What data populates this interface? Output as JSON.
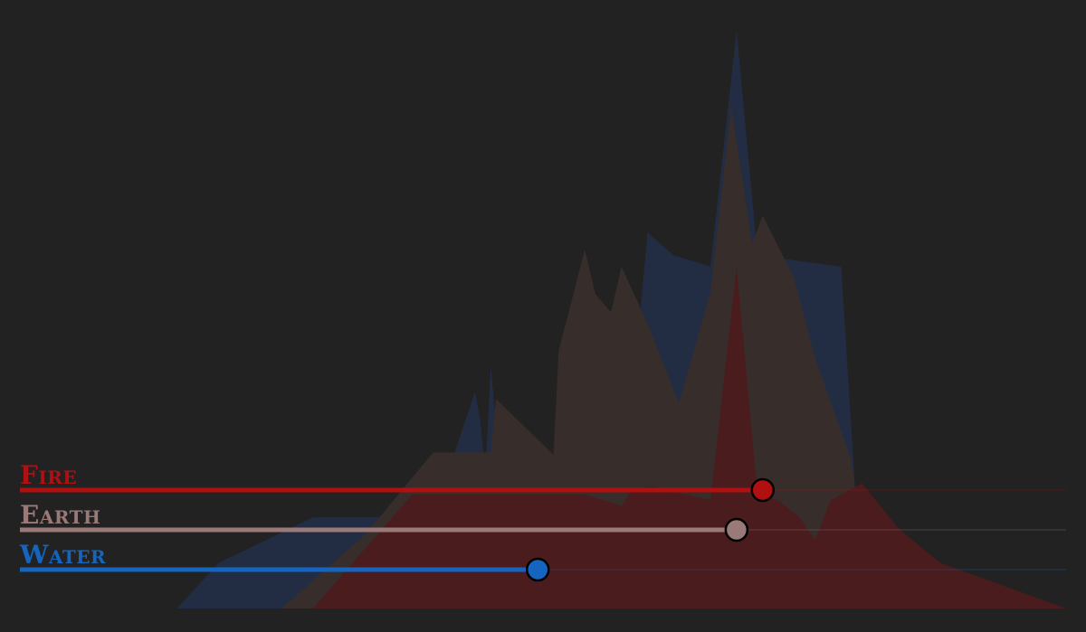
{
  "colors": {
    "background": "#222222",
    "fire": "#b01010",
    "earth": "#9a7a78",
    "water": "#1565c0",
    "fire_area": "#4a1c1d",
    "earth_area": "#372d2b",
    "water_area": "#222d44"
  },
  "sliders": [
    {
      "key": "fire",
      "label": "Fire",
      "value": 0.71
    },
    {
      "key": "earth",
      "label": "Earth",
      "value": 0.685
    },
    {
      "key": "water",
      "label": "Water",
      "value": 0.495
    }
  ],
  "chart_data": {
    "type": "area",
    "series": [
      {
        "key": "water",
        "values": [
          [
            0,
            0
          ],
          [
            0.15,
            0
          ],
          [
            0.19,
            0.4
          ],
          [
            0.28,
            0.8
          ],
          [
            0.36,
            0.8
          ],
          [
            0.39,
            0.1
          ],
          [
            0.4,
            0.95
          ],
          [
            0.435,
            1.9
          ],
          [
            0.44,
            1.65
          ],
          [
            0.445,
            1.2
          ],
          [
            0.45,
            2.12
          ],
          [
            0.46,
            1.15
          ],
          [
            0.52,
            1.4
          ],
          [
            0.58,
            1.28
          ],
          [
            0.6,
            3.3
          ],
          [
            0.625,
            3.1
          ],
          [
            0.66,
            3.0
          ],
          [
            0.685,
            5.07
          ],
          [
            0.705,
            3.1
          ],
          [
            0.785,
            3.0
          ],
          [
            0.8,
            0.8
          ],
          [
            0.84,
            0.6
          ],
          [
            0.88,
            0.15
          ],
          [
            1,
            0
          ]
        ]
      },
      {
        "key": "earth",
        "values": [
          [
            0,
            0
          ],
          [
            0.25,
            0
          ],
          [
            0.33,
            0.65
          ],
          [
            0.395,
            1.37
          ],
          [
            0.45,
            1.37
          ],
          [
            0.455,
            1.84
          ],
          [
            0.51,
            1.35
          ],
          [
            0.515,
            2.26
          ],
          [
            0.54,
            3.15
          ],
          [
            0.55,
            2.76
          ],
          [
            0.565,
            2.6
          ],
          [
            0.575,
            3.0
          ],
          [
            0.6,
            2.5
          ],
          [
            0.63,
            1.8
          ],
          [
            0.66,
            2.78
          ],
          [
            0.68,
            4.4
          ],
          [
            0.7,
            3.2
          ],
          [
            0.71,
            3.45
          ],
          [
            0.74,
            2.9
          ],
          [
            0.76,
            2.2
          ],
          [
            0.795,
            1.3
          ],
          [
            0.81,
            0.2
          ],
          [
            1,
            0
          ]
        ]
      },
      {
        "key": "fire",
        "values": [
          [
            0,
            0
          ],
          [
            0.28,
            0
          ],
          [
            0.375,
            1.0
          ],
          [
            0.54,
            1.0
          ],
          [
            0.575,
            0.9
          ],
          [
            0.585,
            1.05
          ],
          [
            0.605,
            1.07
          ],
          [
            0.66,
            0.95
          ],
          [
            0.685,
            3.0
          ],
          [
            0.705,
            1.0
          ],
          [
            0.725,
            0.95
          ],
          [
            0.745,
            0.8
          ],
          [
            0.76,
            0.6
          ],
          [
            0.775,
            0.95
          ],
          [
            0.805,
            1.1
          ],
          [
            0.84,
            0.7
          ],
          [
            0.88,
            0.4
          ],
          [
            1,
            0
          ]
        ]
      }
    ]
  }
}
